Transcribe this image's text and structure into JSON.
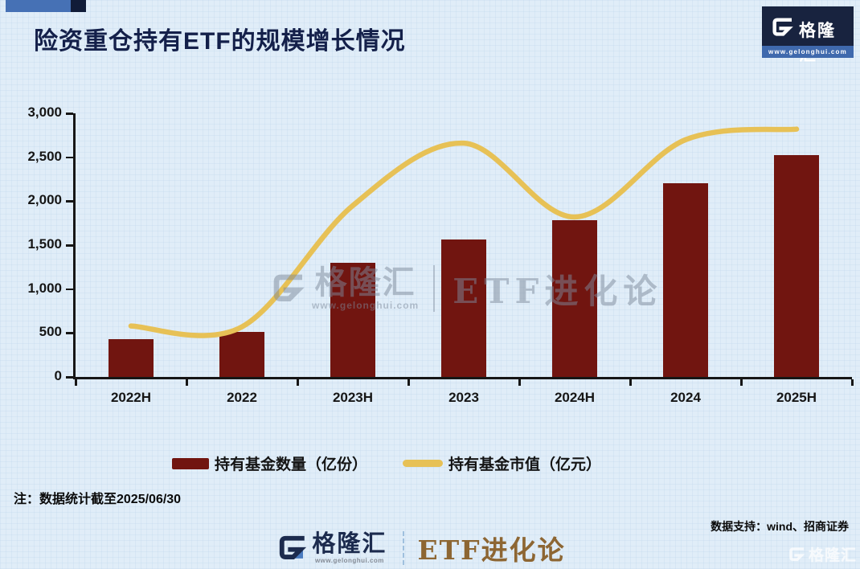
{
  "header": {
    "title": "险资重仓持有ETF的规模增长情况",
    "logo": {
      "brand": "格隆汇",
      "url": "www.gelonghui.com"
    }
  },
  "chart_data": {
    "type": "bar+line",
    "categories": [
      "2022H",
      "2022",
      "2023H",
      "2023",
      "2024H",
      "2024",
      "2025H"
    ],
    "series": [
      {
        "name": "持有基金数量（亿份）",
        "type": "bar",
        "color": "#711510",
        "values": [
          430,
          510,
          1300,
          1560,
          1780,
          2200,
          2520
        ]
      },
      {
        "name": "持有基金市值（亿元）",
        "type": "line",
        "color": "#e7c156",
        "values": [
          580,
          570,
          1950,
          2660,
          1820,
          2700,
          2820
        ]
      }
    ],
    "ylim": [
      0,
      3000
    ],
    "ytick_step": 500,
    "yticks": [
      "0",
      "500",
      "1,000",
      "1,500",
      "2,000",
      "2,500",
      "3,000"
    ],
    "grid": false,
    "legend_position": "bottom"
  },
  "legend": {
    "bar_label": "持有基金数量（亿份）",
    "line_label": "持有基金市值（亿元）"
  },
  "note": "注：数据统计截至2025/06/30",
  "credits": "数据支持：wind、招商证券",
  "watermark": {
    "brand": "格隆汇",
    "url": "www.gelonghui.com",
    "tagline": "ETF进化论"
  },
  "footer": {
    "brand": "格隆汇",
    "url": "www.gelonghui.com",
    "tagline": "ETF进化论"
  },
  "colors": {
    "bar": "#711510",
    "line": "#e7c156",
    "navy": "#14204a",
    "logo_blue": "#3f69ad"
  }
}
